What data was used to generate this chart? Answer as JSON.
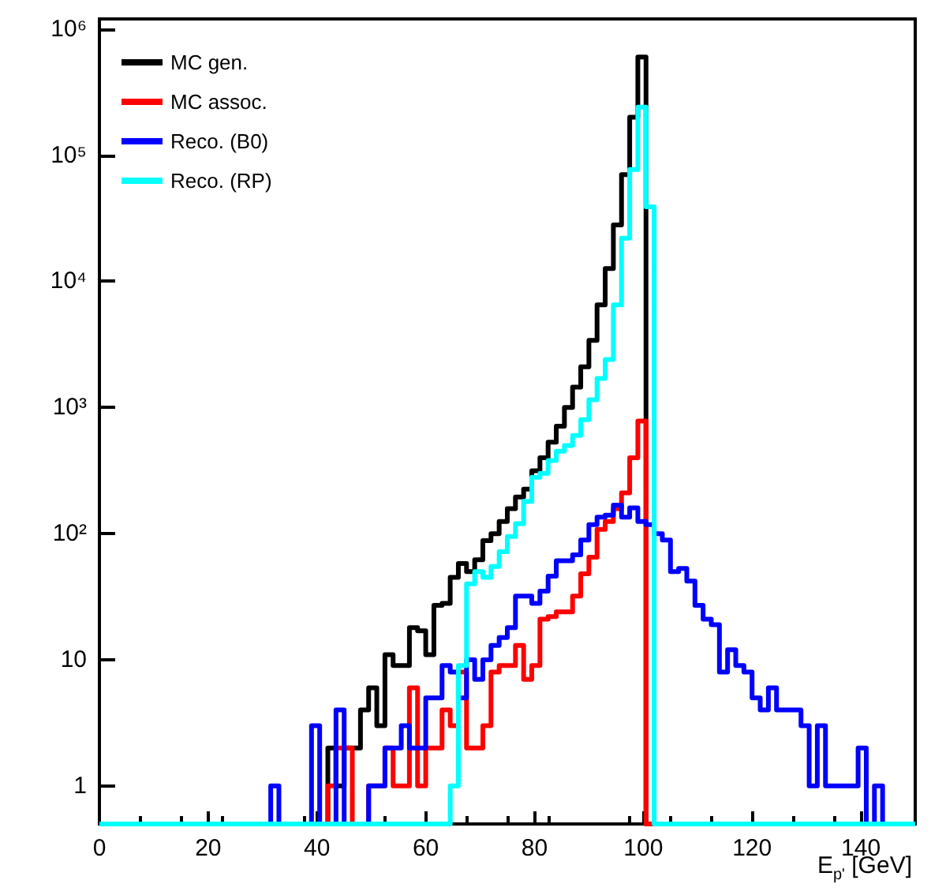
{
  "chart_data": {
    "type": "histogram",
    "xlabel": "E$_{p'}$ [GeV]",
    "bins": [
      0,
      1.5,
      3,
      4.5,
      6,
      7.5,
      9,
      10.5,
      12,
      13.5,
      15,
      16.5,
      18,
      19.5,
      21,
      22.5,
      24,
      25.5,
      27,
      28.5,
      30,
      31.5,
      33,
      34.5,
      36,
      37.5,
      39,
      40.5,
      42,
      43.5,
      45,
      46.5,
      48,
      49.5,
      51,
      52.5,
      54,
      55.5,
      57,
      58.5,
      60,
      61.5,
      63,
      64.5,
      66,
      67.5,
      69,
      70.5,
      72,
      73.5,
      75,
      76.5,
      78,
      79.5,
      81,
      82.5,
      84,
      85.5,
      87,
      88.5,
      90,
      91.5,
      93,
      94.5,
      96,
      97.5,
      99,
      100.5,
      102,
      103.5,
      105,
      106.5,
      108,
      109.5,
      111,
      112.5,
      114,
      115.5,
      117,
      118.5,
      120,
      121.5,
      123,
      124.5,
      126,
      127.5,
      129,
      130.5,
      132,
      133.5,
      135,
      136.5,
      138,
      139.5,
      141,
      142.5,
      144,
      145.5,
      147,
      148.5,
      150
    ],
    "series": [
      {
        "name": "MC gen.",
        "color": "#000000",
        "values": [
          null,
          null,
          null,
          null,
          null,
          null,
          null,
          null,
          null,
          null,
          null,
          null,
          null,
          null,
          null,
          null,
          null,
          null,
          null,
          null,
          null,
          null,
          null,
          null,
          null,
          null,
          null,
          null,
          2,
          1,
          2,
          2,
          4,
          6,
          3,
          11,
          9,
          9,
          18,
          17,
          11,
          27,
          28,
          45,
          58,
          50,
          62,
          88,
          100,
          125,
          158,
          195,
          225,
          315,
          400,
          530,
          710,
          1000,
          1450,
          2100,
          3400,
          6500,
          12600,
          28000,
          70000,
          200000,
          600000,
          null,
          null,
          null,
          null,
          null,
          null,
          null,
          null,
          null,
          null,
          null,
          null,
          null,
          null,
          null,
          null,
          null,
          null,
          null,
          null,
          null,
          null,
          null,
          null,
          null,
          null,
          null,
          null,
          null,
          null,
          null,
          null,
          null
        ]
      },
      {
        "name": "MC assoc.",
        "color": "#ff0000",
        "values": [
          null,
          null,
          null,
          null,
          null,
          null,
          null,
          null,
          null,
          null,
          null,
          null,
          null,
          null,
          null,
          null,
          null,
          null,
          null,
          null,
          null,
          null,
          null,
          null,
          null,
          null,
          null,
          null,
          1,
          2,
          2,
          null,
          null,
          1,
          1,
          2,
          1,
          1,
          6,
          1,
          2,
          2,
          4,
          3,
          8,
          2,
          2,
          3,
          8,
          9,
          9,
          13,
          7,
          9,
          21,
          22,
          24,
          24,
          32,
          48,
          65,
          108,
          125,
          158,
          210,
          400,
          780,
          null,
          null,
          null,
          null,
          null,
          null,
          null,
          null,
          null,
          null,
          null,
          null,
          null,
          null,
          null,
          null,
          null,
          null,
          null,
          null,
          null,
          null,
          null,
          null,
          null,
          null,
          null,
          null,
          null,
          null,
          null,
          null,
          null
        ]
      },
      {
        "name": "Reco. (B0)",
        "color": "#0000ff",
        "values": [
          null,
          null,
          null,
          null,
          null,
          null,
          null,
          null,
          null,
          null,
          null,
          null,
          null,
          null,
          null,
          null,
          null,
          null,
          null,
          null,
          null,
          1,
          null,
          null,
          null,
          null,
          3,
          null,
          null,
          4,
          null,
          null,
          null,
          1,
          1,
          2,
          2,
          3,
          2,
          2,
          5,
          5,
          9,
          8,
          5,
          10,
          7,
          10,
          13,
          15,
          18,
          32,
          32,
          28,
          35,
          46,
          61,
          61,
          68,
          89,
          118,
          135,
          140,
          168,
          135,
          160,
          125,
          118,
          100,
          89,
          50,
          53,
          42,
          27,
          21,
          19,
          8,
          12,
          9,
          8,
          5,
          4,
          6,
          4,
          4,
          4,
          3,
          1,
          3,
          1,
          1,
          1,
          1,
          2,
          null,
          1,
          null,
          null,
          null,
          null
        ]
      },
      {
        "name": "Reco. (RP)",
        "color": "#00ffff",
        "values": [
          null,
          null,
          null,
          null,
          null,
          null,
          null,
          null,
          null,
          null,
          null,
          null,
          null,
          null,
          null,
          null,
          null,
          null,
          null,
          null,
          null,
          null,
          null,
          null,
          null,
          null,
          null,
          null,
          null,
          null,
          null,
          null,
          null,
          null,
          null,
          null,
          null,
          null,
          null,
          null,
          null,
          null,
          null,
          1,
          9,
          40,
          50,
          45,
          55,
          72,
          95,
          120,
          180,
          280,
          300,
          380,
          450,
          500,
          600,
          800,
          1150,
          1700,
          2400,
          6500,
          22000,
          77000,
          240000,
          39000,
          null,
          null,
          null,
          null,
          null,
          null,
          null,
          null,
          null,
          null,
          null,
          null,
          null,
          null,
          null,
          null,
          null,
          null,
          null,
          null,
          null,
          null,
          null,
          null,
          null,
          null,
          null,
          null,
          null,
          null,
          null,
          null
        ]
      }
    ],
    "xlim": [
      0,
      150
    ],
    "xticks": [
      0,
      20,
      40,
      60,
      80,
      100,
      120,
      140
    ],
    "ylim": [
      0.5,
      1200000
    ],
    "yticks": [
      1,
      10,
      {
        "value": 100,
        "label": "10²"
      },
      {
        "value": 1000,
        "label": "10³"
      },
      {
        "value": 10000,
        "label": "10⁴"
      },
      {
        "value": 100000,
        "label": "10⁵"
      },
      {
        "value": 1000000,
        "label": "10⁶"
      }
    ],
    "log": true,
    "legend": "top left",
    "grid": false,
    "line_style": "solid"
  }
}
